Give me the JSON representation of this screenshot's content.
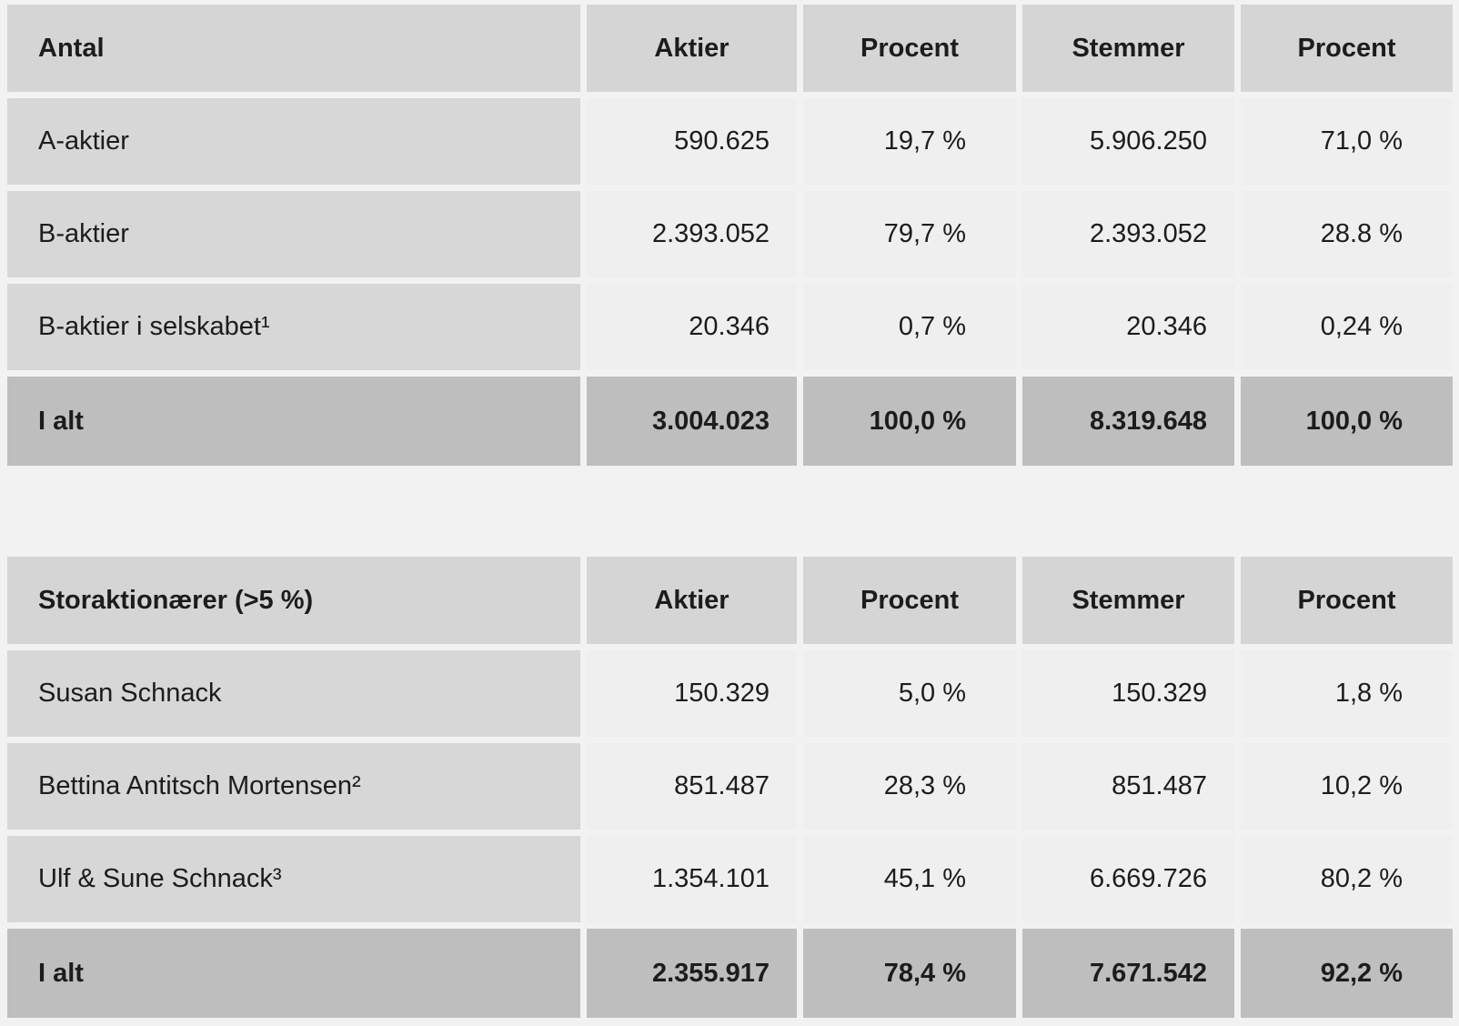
{
  "colors": {
    "page_background": "#f3f2f2",
    "header_cell_background": "#d6d5d5",
    "label_cell_background": "#d8d7d7",
    "data_cell_background": "#f0efef",
    "total_row_background": "#bfbebe",
    "text": "#1c1c1c"
  },
  "tables": [
    {
      "title_column": "Antal",
      "columns": [
        "Aktier",
        "Procent",
        "Stemmer",
        "Procent"
      ],
      "rows": [
        {
          "label": "A-aktier",
          "shares": "590.625",
          "shares_pct": "19,7 %",
          "votes": "5.906.250",
          "votes_pct": "71,0 %"
        },
        {
          "label": "B-aktier",
          "shares": "2.393.052",
          "shares_pct": "79,7 %",
          "votes": "2.393.052",
          "votes_pct": "28.8 %"
        },
        {
          "label": "B-aktier i selskabet¹",
          "shares": "20.346",
          "shares_pct": "0,7 %",
          "votes": "20.346",
          "votes_pct": "0,24 %"
        }
      ],
      "total": {
        "label": "I alt",
        "shares": "3.004.023",
        "shares_pct": "100,0 %",
        "votes": "8.319.648",
        "votes_pct": "100,0 %"
      }
    },
    {
      "title_column": "Storaktionærer (>5 %)",
      "columns": [
        "Aktier",
        "Procent",
        "Stemmer",
        "Procent"
      ],
      "rows": [
        {
          "label": "Susan Schnack",
          "shares": "150.329",
          "shares_pct": "5,0 %",
          "votes": "150.329",
          "votes_pct": "1,8 %"
        },
        {
          "label": "Bettina Antitsch Mortensen²",
          "shares": "851.487",
          "shares_pct": "28,3 %",
          "votes": "851.487",
          "votes_pct": "10,2 %"
        },
        {
          "label": "Ulf & Sune Schnack³",
          "shares": "1.354.101",
          "shares_pct": "45,1 %",
          "votes": "6.669.726",
          "votes_pct": "80,2 %"
        }
      ],
      "total": {
        "label": "I alt",
        "shares": "2.355.917",
        "shares_pct": "78,4 %",
        "votes": "7.671.542",
        "votes_pct": "92,2 %"
      }
    }
  ]
}
